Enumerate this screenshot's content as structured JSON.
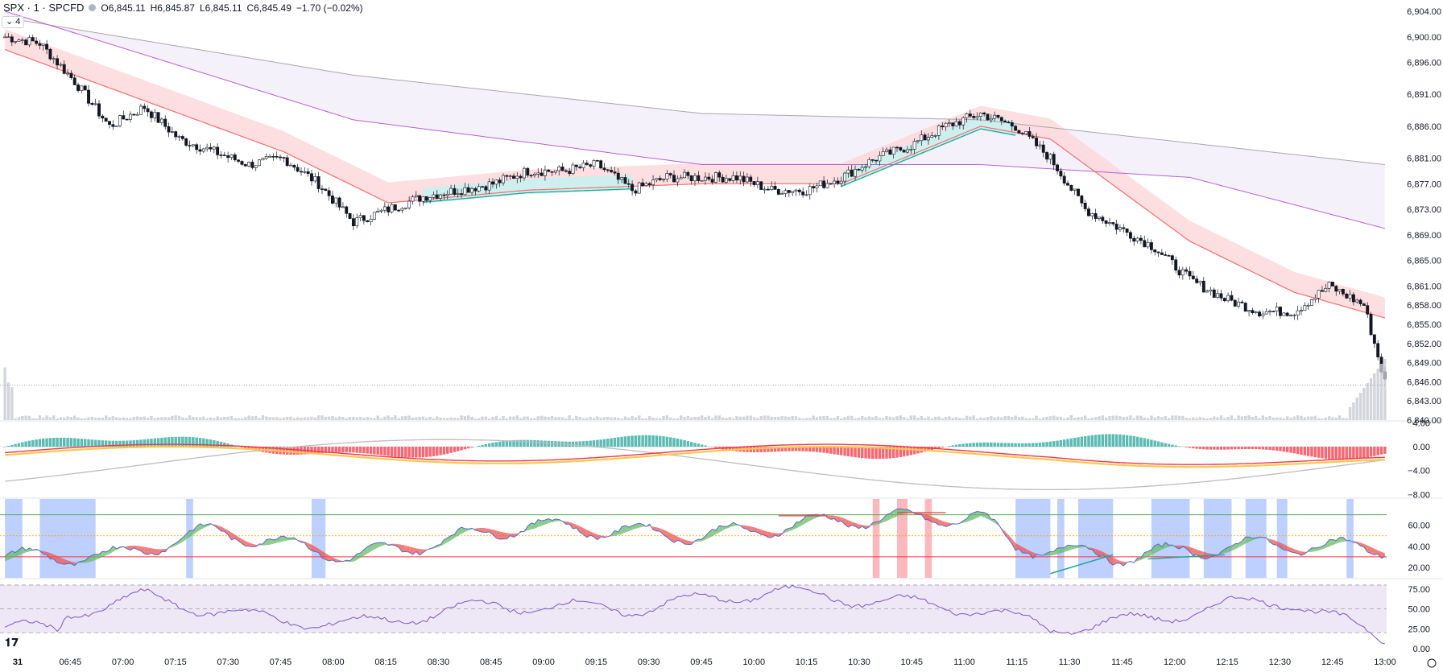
{
  "header": {
    "symbol": "SPX · 1 · SPCFD",
    "open_label": "O",
    "open": "6,845.11",
    "high_label": "H",
    "high": "6,845.87",
    "low_label": "L",
    "low": "6,845.11",
    "close_label": "C",
    "close": "6,845.49",
    "change": "−1.70 (−0.02%)",
    "collapsed_count": "4"
  },
  "colors": {
    "ema_fast": "#f06f6f",
    "ema_slow": "#b561d3",
    "sma_long": "#a8a8a8",
    "cloud_bear": "#fdd8dc",
    "cloud_bull": "#c9f1ee",
    "teal": "#26a69a",
    "macd_pos": "#26a69a",
    "macd_neg": "#f23645",
    "blue_zone": "#2962ff",
    "red_zone": "#f23645",
    "rsi_line": "#7e57c2",
    "rsi_bg": "#ede7f6"
  },
  "chart_data": [
    {
      "type": "candlestick",
      "name": "price",
      "x_ticks": [
        "31",
        "06:45",
        "07:00",
        "07:15",
        "07:30",
        "07:45",
        "08:00",
        "08:15",
        "08:30",
        "08:45",
        "09:00",
        "09:15",
        "09:30",
        "09:45",
        "10:00",
        "10:15",
        "10:30",
        "10:45",
        "11:00",
        "11:15",
        "11:30",
        "11:45",
        "12:00",
        "12:15",
        "12:30",
        "12:45",
        "13:00"
      ],
      "y_ticks": [
        "6,904.00",
        "6,900.00",
        "6,896.00",
        "6,891.00",
        "6,886.00",
        "6,881.00",
        "6,877.00",
        "6,873.00",
        "6,869.00",
        "6,865.00",
        "6,861.00",
        "6,858.00",
        "6,855.00",
        "6,852.00",
        "6,849.00",
        "6,846.00",
        "6,843.00",
        "6,840.00"
      ],
      "ylim": [
        6840,
        6904
      ],
      "close_path": [
        [
          0,
          6900
        ],
        [
          10,
          6899
        ],
        [
          20,
          6893
        ],
        [
          30,
          6886
        ],
        [
          40,
          6889
        ],
        [
          50,
          6884
        ],
        [
          60,
          6882
        ],
        [
          70,
          6880
        ],
        [
          80,
          6881
        ],
        [
          90,
          6877
        ],
        [
          100,
          6871
        ],
        [
          110,
          6873
        ],
        [
          120,
          6875
        ],
        [
          130,
          6876
        ],
        [
          140,
          6877
        ],
        [
          150,
          6879
        ],
        [
          160,
          6879
        ],
        [
          170,
          6880
        ],
        [
          180,
          6876
        ],
        [
          190,
          6878
        ],
        [
          200,
          6878
        ],
        [
          210,
          6878
        ],
        [
          220,
          6876
        ],
        [
          230,
          6876
        ],
        [
          240,
          6878
        ],
        [
          250,
          6881
        ],
        [
          260,
          6883
        ],
        [
          270,
          6886
        ],
        [
          280,
          6888
        ],
        [
          290,
          6886
        ],
        [
          300,
          6881
        ],
        [
          310,
          6873
        ],
        [
          320,
          6870
        ],
        [
          330,
          6867
        ],
        [
          340,
          6862
        ],
        [
          350,
          6859
        ],
        [
          360,
          6857
        ],
        [
          370,
          6857
        ],
        [
          380,
          6861
        ],
        [
          390,
          6858
        ],
        [
          396,
          6846
        ]
      ],
      "ema_fast_path": [
        [
          0,
          6898
        ],
        [
          40,
          6890
        ],
        [
          80,
          6882
        ],
        [
          110,
          6874
        ],
        [
          150,
          6876
        ],
        [
          200,
          6877
        ],
        [
          240,
          6877
        ],
        [
          280,
          6886
        ],
        [
          300,
          6884
        ],
        [
          340,
          6868
        ],
        [
          370,
          6860
        ],
        [
          396,
          6856
        ]
      ],
      "ema_slow_path": [
        [
          0,
          6904
        ],
        [
          100,
          6887
        ],
        [
          200,
          6880
        ],
        [
          280,
          6880
        ],
        [
          340,
          6878
        ],
        [
          396,
          6870
        ]
      ],
      "sma_long_path": [
        [
          0,
          6903
        ],
        [
          100,
          6894
        ],
        [
          200,
          6888
        ],
        [
          280,
          6887
        ],
        [
          396,
          6880
        ]
      ],
      "last_price": 6845.49
    },
    {
      "type": "bar",
      "name": "macd",
      "y_ticks": [
        "4.00",
        "0.00",
        "−4.00",
        "−8.00"
      ],
      "ylim": [
        -8.5,
        4.2
      ]
    },
    {
      "type": "line",
      "name": "oscillator",
      "y_ticks": [
        "60.00",
        "40.00",
        "20.00"
      ],
      "ylim": [
        10,
        85
      ],
      "levels": [
        70,
        50,
        30
      ]
    },
    {
      "type": "line",
      "name": "rsi",
      "y_ticks": [
        "75.00",
        "50.00",
        "25.00",
        "0.00"
      ],
      "ylim": [
        0,
        85
      ],
      "levels": [
        80,
        50,
        20
      ]
    }
  ]
}
